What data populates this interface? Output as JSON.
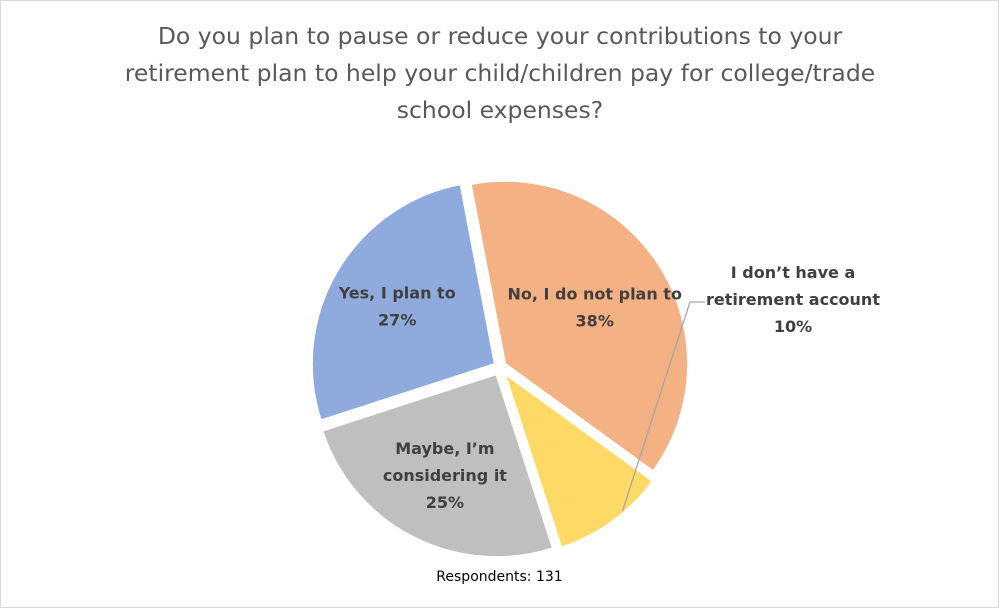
{
  "chart_data": {
    "type": "pie",
    "title": "Do you plan to pause or reduce your contributions to your retirement plan to help your child/children pay for college/trade school expenses?",
    "categories": [
      "I don’t have a retirement account",
      "Maybe, I’m considering it",
      "Yes, I plan to",
      "No, I do not plan to"
    ],
    "values": [
      10,
      25,
      27,
      38
    ],
    "value_labels": [
      "10%",
      "25%",
      "27%",
      "38%"
    ],
    "label_lines": [
      [
        "I don’t have a",
        "retirement account",
        "10%"
      ],
      [
        "Maybe, I’m",
        "considering it",
        "25%"
      ],
      [
        "Yes, I plan to",
        "27%"
      ],
      [
        "No, I do not plan to",
        "38%"
      ]
    ],
    "colors": [
      "#ffd966",
      "#bfbfbf",
      "#8faadc",
      "#f4b183"
    ],
    "exploded": true,
    "legend": "none",
    "data_labels": "inside, except smallest slice outside with leader line"
  },
  "footnote": "Respondents: 131"
}
